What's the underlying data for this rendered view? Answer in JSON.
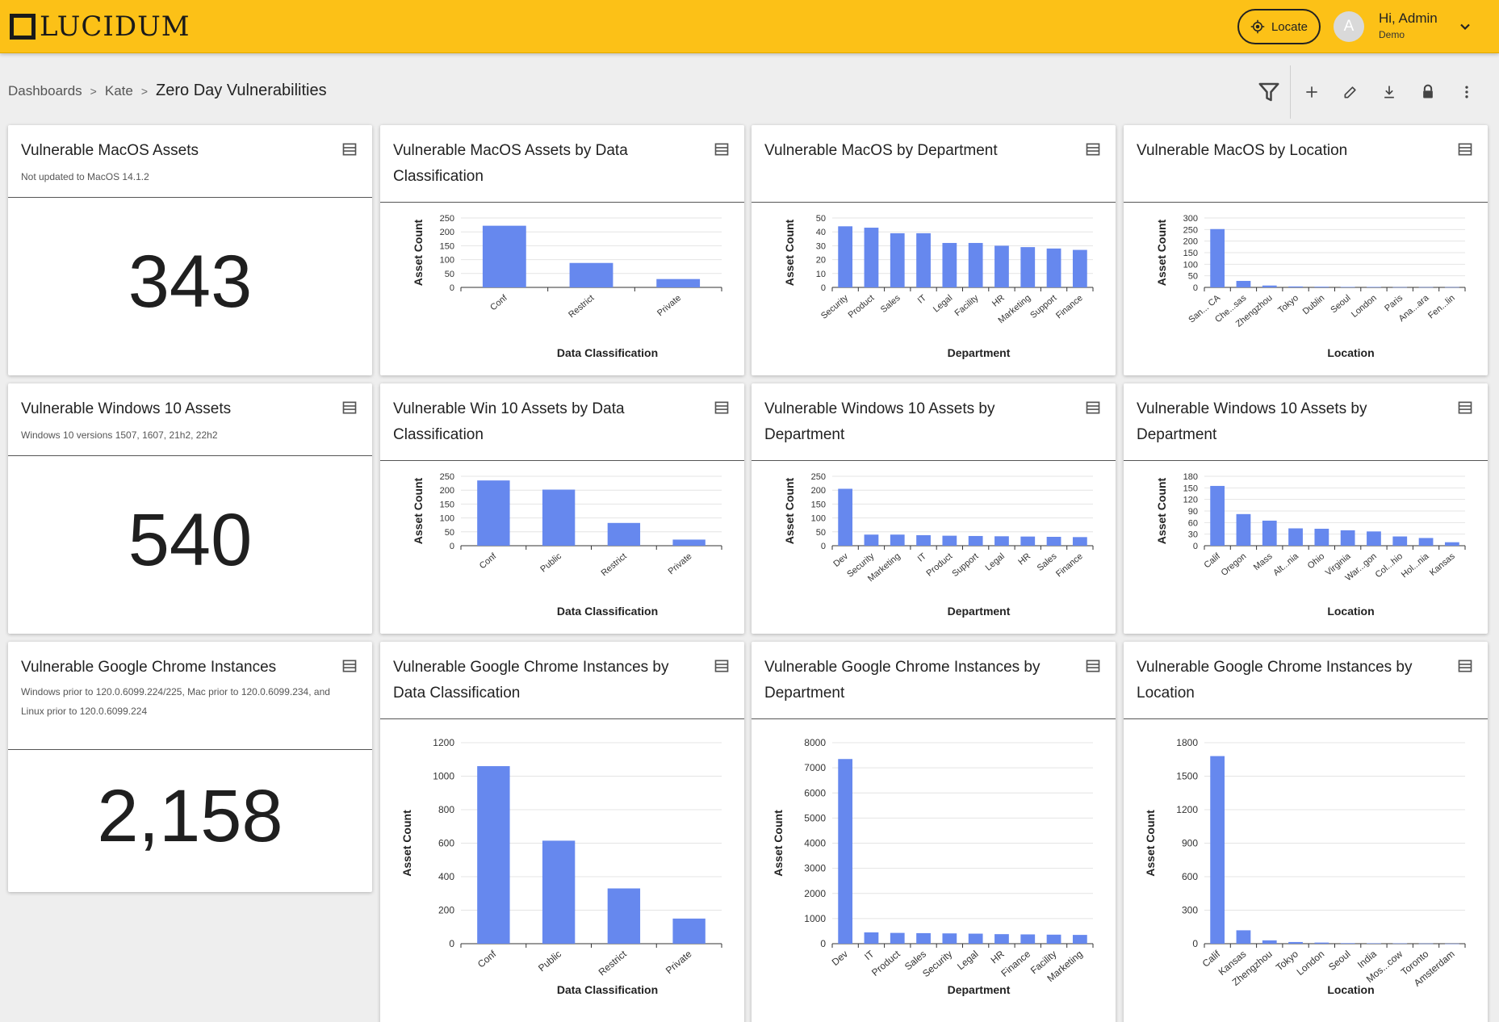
{
  "app": {
    "logo_text": "LUCIDUM"
  },
  "header": {
    "locate_label": "Locate",
    "avatar_initial": "A",
    "user_greeting": "Hi, Admin",
    "user_org": "Demo"
  },
  "breadcrumb": {
    "items": [
      "Dashboards",
      "Kate"
    ],
    "current": "Zero Day Vulnerabilities",
    "separator": ">"
  },
  "toolbar": {
    "icons": [
      "filter-icon",
      "add-icon",
      "edit-icon",
      "download-icon",
      "lock-icon",
      "more-vert-icon"
    ]
  },
  "colors": {
    "accent": "#fcc117",
    "bar": "#6688ee"
  },
  "cards": [
    {
      "title": "Vulnerable MacOS Assets",
      "subtitle": "Not updated to MacOS 14.1.2",
      "value": "343"
    },
    {
      "title": "Vulnerable MacOS Assets by Data Classification"
    },
    {
      "title": "Vulnerable MacOS by Department"
    },
    {
      "title": "Vulnerable MacOS by Location"
    },
    {
      "title": "Vulnerable Windows 10 Assets",
      "subtitle": "Windows 10 versions 1507, 1607, 21h2, 22h2",
      "value": "540"
    },
    {
      "title": "Vulnerable Win 10 Assets by Data Classification"
    },
    {
      "title": "Vulnerable Windows 10 Assets by Department"
    },
    {
      "title": "Vulnerable Windows 10 Assets by Department"
    },
    {
      "title": "Vulnerable Google Chrome Instances",
      "subtitle": "Windows prior to 120.0.6099.224/225, Mac prior to 120.0.6099.234, and Linux prior to 120.0.6099.224",
      "value": "2,158"
    },
    {
      "title": "Vulnerable Google Chrome Instances by Data Classification"
    },
    {
      "title": "Vulnerable Google Chrome Instances by Department"
    },
    {
      "title": "Vulnerable Google Chrome Instances by Location"
    }
  ],
  "chart_data": [
    {
      "type": "bar",
      "xlabel": "Data Classification",
      "ylabel": "Asset Count",
      "ylim": [
        0,
        250
      ],
      "yticks": [
        0,
        50,
        100,
        150,
        200,
        250
      ],
      "categories": [
        "Conf",
        "Restrict",
        "Private"
      ],
      "values": [
        222,
        88,
        30
      ]
    },
    {
      "type": "bar",
      "xlabel": "Department",
      "ylabel": "Asset Count",
      "ylim": [
        0,
        50
      ],
      "yticks": [
        0,
        10,
        20,
        30,
        40,
        50
      ],
      "categories": [
        "Security",
        "Product",
        "Sales",
        "IT",
        "Legal",
        "Facility",
        "HR",
        "Marketing",
        "Support",
        "Finance"
      ],
      "values": [
        44,
        43,
        39,
        39,
        32,
        32,
        30,
        29,
        28,
        27
      ]
    },
    {
      "type": "bar",
      "xlabel": "Location",
      "ylabel": "Asset Count",
      "ylim": [
        0,
        300
      ],
      "yticks": [
        0,
        50,
        100,
        150,
        200,
        250,
        300
      ],
      "categories": [
        "San... CA",
        "Che...sas",
        "Zhengzhou",
        "Tokyo",
        "Dublin",
        "Seoul",
        "London",
        "Paris",
        "Ana...ara",
        "Fen...lin"
      ],
      "values": [
        252,
        28,
        8,
        4,
        3,
        2,
        2,
        1,
        1,
        1
      ]
    },
    {
      "type": "bar",
      "xlabel": "Data Classification",
      "ylabel": "Asset Count",
      "ylim": [
        0,
        250
      ],
      "yticks": [
        0,
        50,
        100,
        150,
        200,
        250
      ],
      "categories": [
        "Conf",
        "Public",
        "Restrict",
        "Private"
      ],
      "values": [
        235,
        202,
        82,
        22
      ]
    },
    {
      "type": "bar",
      "xlabel": "Department",
      "ylabel": "Asset Count",
      "ylim": [
        0,
        250
      ],
      "yticks": [
        0,
        50,
        100,
        150,
        200,
        250
      ],
      "categories": [
        "Dev",
        "Security",
        "Marketing",
        "IT",
        "Product",
        "Support",
        "Legal",
        "HR",
        "Sales",
        "Finance"
      ],
      "values": [
        205,
        40,
        40,
        38,
        36,
        35,
        34,
        33,
        32,
        31
      ]
    },
    {
      "type": "bar",
      "xlabel": "Location",
      "ylabel": "Asset Count",
      "ylim": [
        0,
        180
      ],
      "yticks": [
        0,
        30,
        60,
        90,
        120,
        150,
        180
      ],
      "categories": [
        "Calif",
        "Oregon",
        "Mass",
        "Alt...nia",
        "Ohio",
        "Virginia",
        "War...gon",
        "Col...hio",
        "Hol...nia",
        "Kansas"
      ],
      "values": [
        155,
        82,
        65,
        45,
        44,
        40,
        37,
        24,
        20,
        9
      ]
    },
    {
      "type": "bar",
      "xlabel": "Data Classification",
      "ylabel": "Asset Count",
      "ylim": [
        0,
        1200
      ],
      "yticks": [
        0,
        200,
        400,
        600,
        800,
        1000,
        1200
      ],
      "categories": [
        "Conf",
        "Public",
        "Restrict",
        "Private"
      ],
      "values": [
        1060,
        615,
        330,
        150
      ]
    },
    {
      "type": "bar",
      "xlabel": "Department",
      "ylabel": "Asset Count",
      "ylim": [
        0,
        8000
      ],
      "yticks": [
        0,
        1000,
        2000,
        3000,
        4000,
        5000,
        6000,
        7000,
        8000
      ],
      "categories": [
        "Dev",
        "IT",
        "Product",
        "Sales",
        "Security",
        "Legal",
        "HR",
        "Finance",
        "Facility",
        "Marketing"
      ],
      "values": [
        7350,
        450,
        430,
        420,
        410,
        400,
        380,
        370,
        360,
        350
      ]
    },
    {
      "type": "bar",
      "xlabel": "Location",
      "ylabel": "Asset Count",
      "ylim": [
        0,
        1800
      ],
      "yticks": [
        0,
        300,
        600,
        900,
        1200,
        1500,
        1800
      ],
      "categories": [
        "Calif",
        "Kansas",
        "Zhengzhou",
        "Tokyo",
        "London",
        "Seoul",
        "India",
        "Mos...cow",
        "Toronto",
        "Amsterdam"
      ],
      "values": [
        1680,
        120,
        30,
        15,
        10,
        5,
        4,
        3,
        2,
        1
      ]
    }
  ]
}
